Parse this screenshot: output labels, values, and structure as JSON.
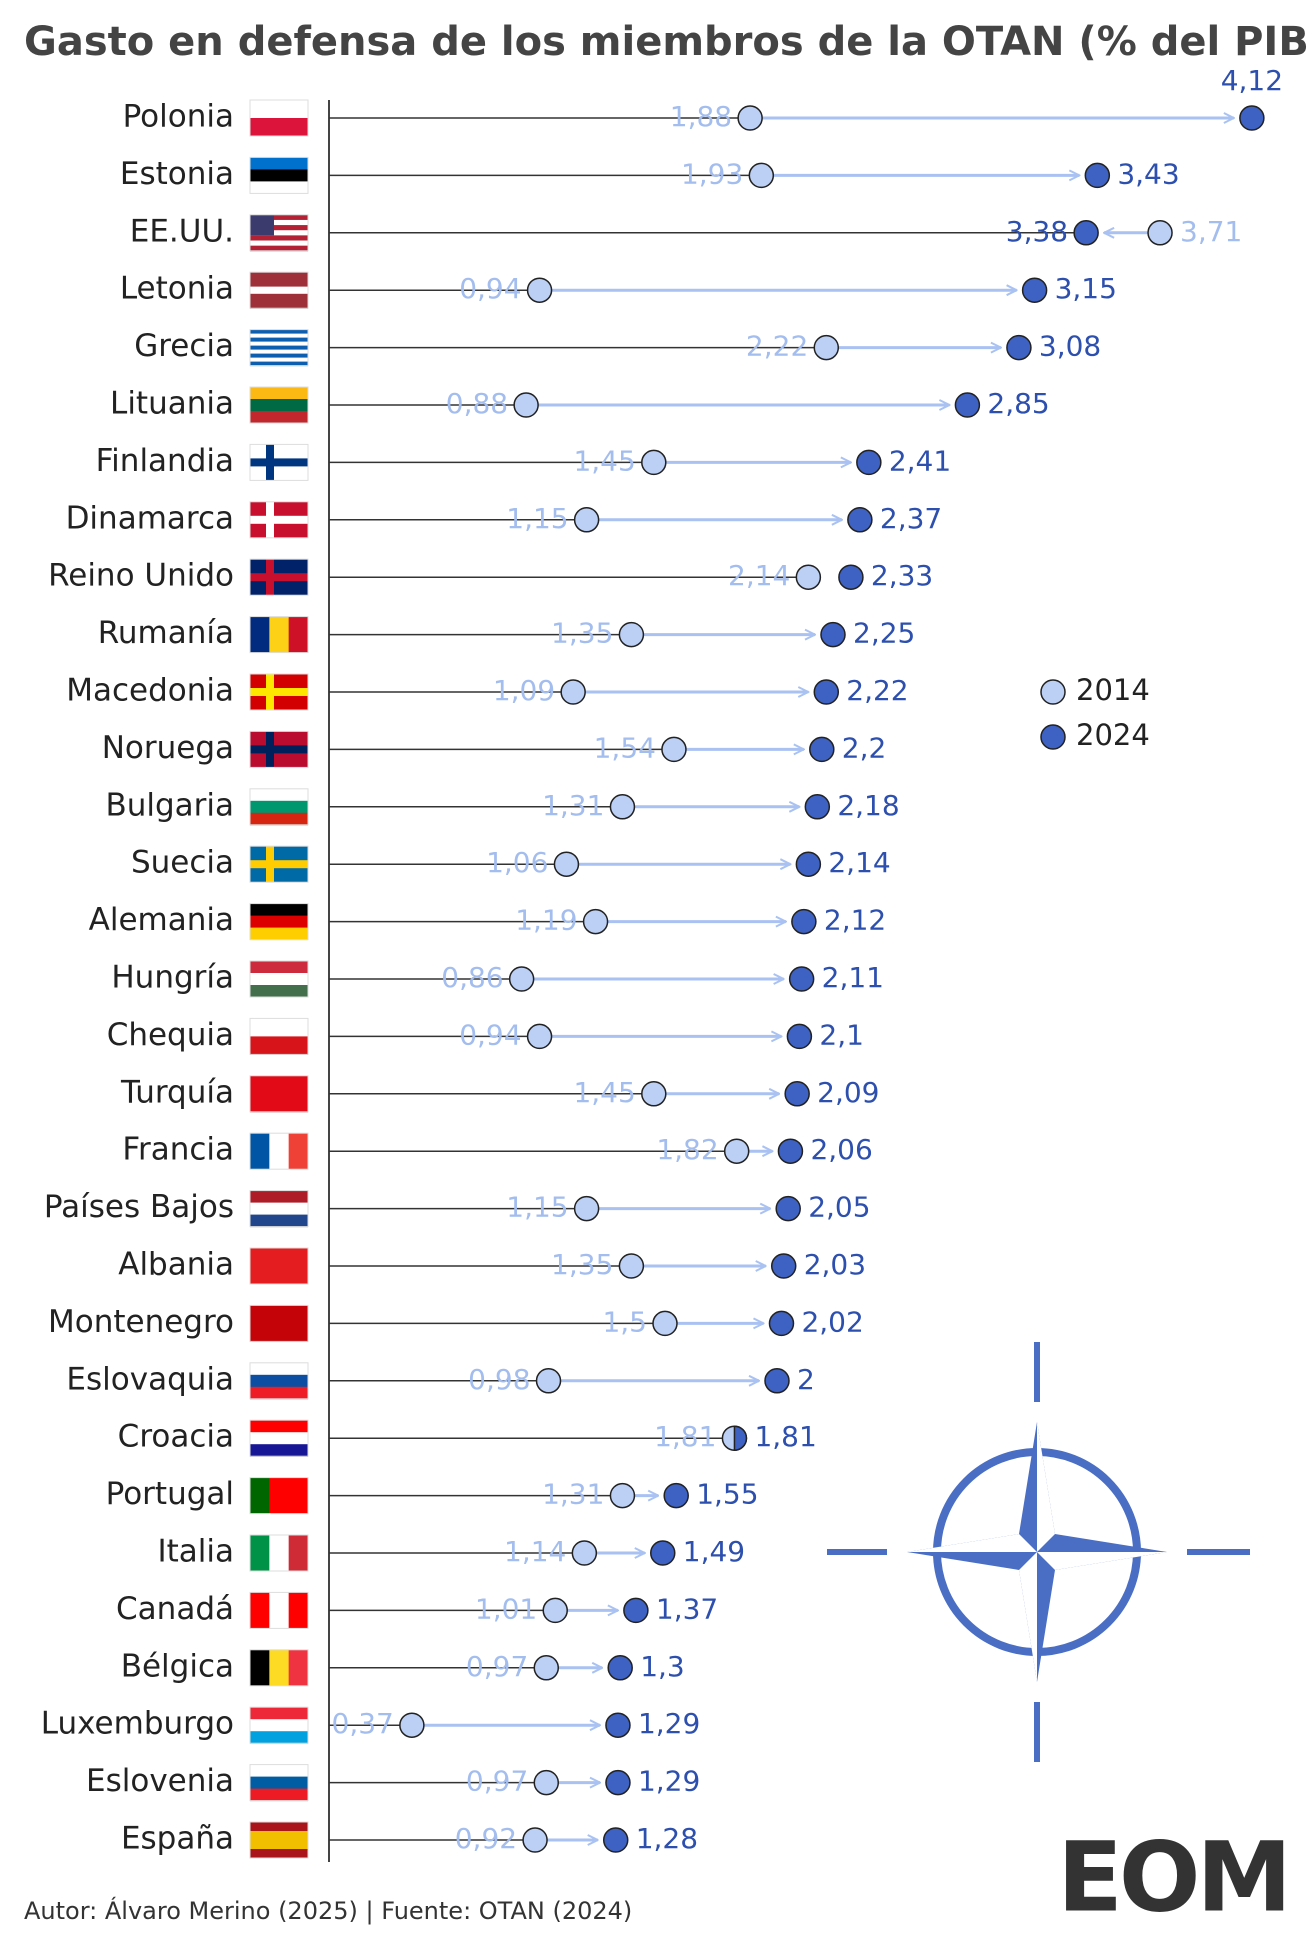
{
  "chart_data": {
    "type": "dumbbell",
    "title": "Gasto en defensa de los miembros de la OTAN (% del PIB)",
    "categories": [
      "Polonia",
      "Estonia",
      "EE.UU.",
      "Letonia",
      "Grecia",
      "Lituania",
      "Finlandia",
      "Dinamarca",
      "Reino Unido",
      "Rumanía",
      "Macedonia",
      "Noruega",
      "Bulgaria",
      "Suecia",
      "Alemania",
      "Hungría",
      "Chequia",
      "Turquía",
      "Francia",
      "Países Bajos",
      "Albania",
      "Montenegro",
      "Eslovaquia",
      "Croacia",
      "Portugal",
      "Italia",
      "Canadá",
      "Bélgica",
      "Luxemburgo",
      "Eslovenia",
      "España"
    ],
    "series": [
      {
        "name": "2014",
        "color": "#bcd0f6",
        "values": [
          1.88,
          1.93,
          3.71,
          0.94,
          2.22,
          0.88,
          1.45,
          1.15,
          2.14,
          1.35,
          1.09,
          1.54,
          1.31,
          1.06,
          1.19,
          0.86,
          0.94,
          1.45,
          1.82,
          1.15,
          1.35,
          1.5,
          0.98,
          1.81,
          1.31,
          1.14,
          1.01,
          0.97,
          0.37,
          0.97,
          0.92
        ],
        "value_labels": [
          "1,88",
          "1,93",
          "3,71",
          "0,94",
          "2,22",
          "0,88",
          "1,45",
          "1,15",
          "2,14",
          "1,35",
          "1,09",
          "1,54",
          "1,31",
          "1,06",
          "1,19",
          "0,86",
          "0,94",
          "1,45",
          "1,82",
          "1,15",
          "1,35",
          "1,5",
          "0,98",
          "1,81",
          "1,31",
          "1,14",
          "1,01",
          "0,97",
          "0,37",
          "0,97",
          "0,92"
        ]
      },
      {
        "name": "2024",
        "color": "#3d62c4",
        "values": [
          4.12,
          3.43,
          3.38,
          3.15,
          3.08,
          2.85,
          2.41,
          2.37,
          2.33,
          2.25,
          2.22,
          2.2,
          2.18,
          2.14,
          2.12,
          2.11,
          2.1,
          2.09,
          2.06,
          2.05,
          2.03,
          2.02,
          2,
          1.81,
          1.55,
          1.49,
          1.37,
          1.3,
          1.29,
          1.29,
          1.28
        ],
        "value_labels": [
          "4,12",
          "3,43",
          "3,38",
          "3,15",
          "3,08",
          "2,85",
          "2,41",
          "2,37",
          "2,33",
          "2,25",
          "2,22",
          "2,2",
          "2,18",
          "2,14",
          "2,12",
          "2,11",
          "2,1",
          "2,09",
          "2,06",
          "2,05",
          "2,03",
          "2,02",
          "2",
          "1,81",
          "1,55",
          "1,49",
          "1,37",
          "1,3",
          "1,29",
          "1,29",
          "1,28"
        ]
      }
    ],
    "source": "Autor: Álvaro Merino (2025) | Fuente: OTAN (2024)",
    "brand": "EOM"
  }
}
